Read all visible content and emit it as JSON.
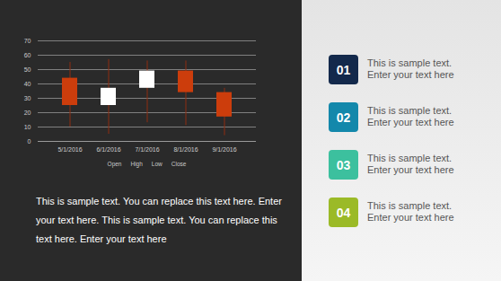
{
  "chart_data": {
    "type": "candlestick",
    "categories": [
      "5/1/2016",
      "6/1/2016",
      "7/1/2016",
      "8/1/2016",
      "9/1/2016"
    ],
    "series": [
      {
        "name": "Open",
        "values": [
          44,
          25,
          37,
          49,
          34
        ]
      },
      {
        "name": "High",
        "values": [
          55,
          57,
          56,
          56,
          37
        ]
      },
      {
        "name": "Low",
        "values": [
          10,
          5,
          13,
          11,
          4
        ]
      },
      {
        "name": "Close",
        "values": [
          25,
          37,
          49,
          34,
          17
        ]
      }
    ],
    "colors": [
      "#cc3d0c",
      "#ffffff",
      "#ffffff",
      "#cc3d0c",
      "#cc3d0c"
    ],
    "ylim": [
      0,
      70
    ],
    "yticks": [
      0,
      10,
      20,
      30,
      40,
      50,
      60,
      70
    ],
    "grid": true
  },
  "paragraph": "This is sample text. You can replace this text here. Enter your text here. This is sample text. You can replace this text here. Enter your text here",
  "items": [
    {
      "number": "01",
      "color": "#13294b",
      "text": [
        "This is sample text.",
        "Enter your text here"
      ]
    },
    {
      "number": "02",
      "color": "#1388ab",
      "text": [
        "This is sample text.",
        "Enter your text here"
      ]
    },
    {
      "number": "03",
      "color": "#3cc09e",
      "text": [
        "This is sample text.",
        "Enter your text here"
      ]
    },
    {
      "number": "04",
      "color": "#9bba27",
      "text": [
        "This is sample text.",
        "Enter your text here"
      ]
    }
  ]
}
